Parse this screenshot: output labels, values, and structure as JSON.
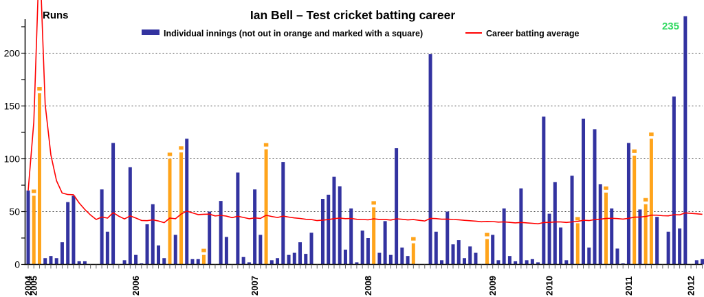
{
  "title": "Ian Bell – Test cricket batting career",
  "y_axis": {
    "label": "Runs",
    "ticks": [
      0,
      50,
      100,
      150,
      200
    ],
    "minor_step": 25
  },
  "legend": {
    "innings_label": "Individual innings (not out in orange and marked with a square)",
    "average_label": "Career batting average"
  },
  "annotation": {
    "text": "235",
    "color": "#2FD95F"
  },
  "colors": {
    "bar_out": "#3333A0",
    "bar_not_out": "#FFA41B",
    "average_line": "#FF0000",
    "axis": "#000000",
    "gridline": "#444444",
    "x_tick": "#666666"
  },
  "chart_data": {
    "type": "bar",
    "x_unit": "Test innings in chronological order",
    "ylim": [
      0,
      235
    ],
    "grid": "dashed horizontal lines at 50,100,150,200",
    "legend_position": "top center",
    "years": [
      {
        "label": "2004",
        "inning": 1
      },
      {
        "label": "2005",
        "inning": 2
      },
      {
        "label": "2006",
        "inning": 20
      },
      {
        "label": "2007",
        "inning": 41
      },
      {
        "label": "2008",
        "inning": 61
      },
      {
        "label": "2009",
        "inning": 83
      },
      {
        "label": "2010",
        "inning": 93
      },
      {
        "label": "2011",
        "inning": 107
      },
      {
        "label": "2012",
        "inning": 118
      }
    ],
    "innings_runs": [
      70,
      65,
      162,
      6,
      8,
      6,
      21,
      59,
      65,
      3,
      3,
      0,
      0,
      71,
      31,
      115,
      0,
      4,
      92,
      9,
      1,
      38,
      57,
      18,
      6,
      100,
      28,
      106,
      119,
      5,
      5,
      9,
      50,
      0,
      60,
      26,
      0,
      87,
      7,
      2,
      71,
      28,
      109,
      4,
      6,
      97,
      9,
      11,
      21,
      10,
      30,
      0,
      62,
      66,
      83,
      74,
      14,
      53,
      2,
      32,
      25,
      54,
      11,
      41,
      9,
      110,
      16,
      8,
      20,
      0,
      0,
      199,
      31,
      4,
      50,
      19,
      23,
      6,
      17,
      11,
      0,
      24,
      28,
      4,
      53,
      8,
      3,
      72,
      4,
      5,
      2,
      140,
      48,
      78,
      35,
      4,
      84,
      39,
      138,
      16,
      128,
      76,
      68,
      53,
      15,
      1,
      115,
      103,
      52,
      57,
      119,
      45,
      0,
      31,
      159,
      34,
      235,
      0,
      4,
      5
    ],
    "not_out_innings": [
      2,
      3,
      26,
      28,
      32,
      43,
      62,
      69,
      82,
      98,
      103,
      108,
      110,
      111
    ],
    "series": [
      {
        "name": "Individual innings",
        "type": "bar"
      },
      {
        "name": "Career batting average",
        "type": "line",
        "derivation": "cumulative runs divided by cumulative dismissals after each innings",
        "start_value": 70,
        "end_value": 47.5
      }
    ]
  }
}
